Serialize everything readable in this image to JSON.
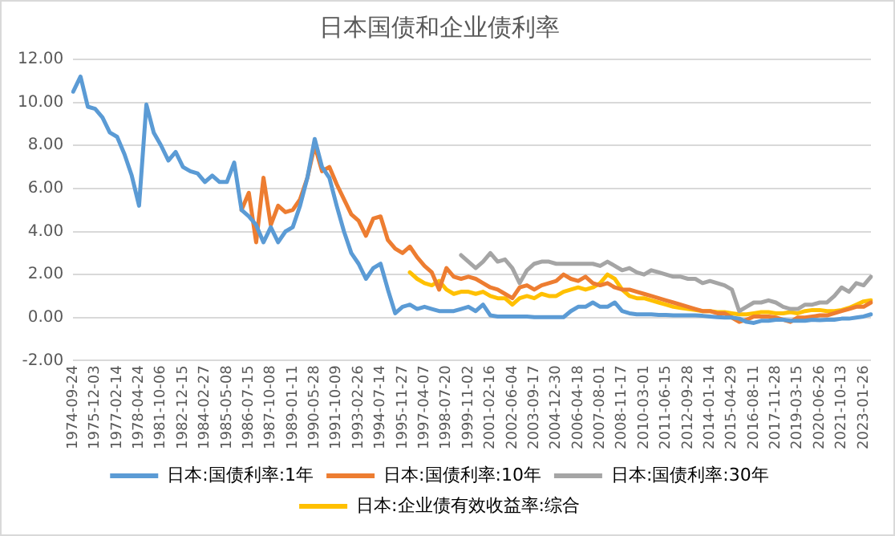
{
  "chart_data": {
    "type": "line",
    "title": "日本国债和企业债利率",
    "categories": [
      "1974-09-24",
      null,
      null,
      "1975-12-03",
      null,
      null,
      "1977-02-14",
      null,
      null,
      "1978-04-24",
      null,
      null,
      "1981-10-06",
      null,
      null,
      "1982-12-15",
      null,
      null,
      "1984-02-27",
      null,
      null,
      "1985-05-08",
      null,
      null,
      "1986-07-15",
      null,
      null,
      "1987-10-08",
      null,
      null,
      "1989-01-11",
      null,
      null,
      "1990-05-28",
      null,
      null,
      "1991-10-09",
      null,
      null,
      "1993-02-26",
      null,
      null,
      "1994-07-14",
      null,
      null,
      "1995-11-27",
      null,
      null,
      "1997-04-07",
      null,
      null,
      "1998-07-20",
      null,
      null,
      "1999-11-02",
      null,
      null,
      "2001-02-16",
      null,
      null,
      "2002-06-04",
      null,
      null,
      "2003-09-17",
      null,
      null,
      "2004-12-30",
      null,
      null,
      "2006-04-18",
      null,
      null,
      "2007-08-01",
      null,
      null,
      "2008-11-17",
      null,
      null,
      "2010-03-01",
      null,
      null,
      "2011-06-15",
      null,
      null,
      "2012-09-28",
      null,
      null,
      "2014-01-14",
      null,
      null,
      "2015-04-29",
      null,
      null,
      "2016-08-11",
      null,
      null,
      "2017-11-28",
      null,
      null,
      "2019-03-15",
      null,
      null,
      "2020-06-26",
      null,
      null,
      "2021-10-13",
      null,
      null,
      "2023-01-26",
      null
    ],
    "series": [
      {
        "name": "日本:国债利率:1年",
        "color": "#5b9bd5",
        "values": [
          10.5,
          11.2,
          9.8,
          9.7,
          9.3,
          8.6,
          8.4,
          7.6,
          6.6,
          5.2,
          9.9,
          8.6,
          8.0,
          7.3,
          7.7,
          7.0,
          6.8,
          6.7,
          6.3,
          6.6,
          6.3,
          6.3,
          7.2,
          5.0,
          4.7,
          4.3,
          3.5,
          4.2,
          3.5,
          4.0,
          4.2,
          5.2,
          6.5,
          8.3,
          7.0,
          6.5,
          5.2,
          4.0,
          3.0,
          2.5,
          1.8,
          2.3,
          2.5,
          1.3,
          0.2,
          0.5,
          0.6,
          0.4,
          0.5,
          0.4,
          0.3,
          0.3,
          0.3,
          0.4,
          0.5,
          0.3,
          0.6,
          0.1,
          0.05,
          0.05,
          0.05,
          0.05,
          0.05,
          0.02,
          0.02,
          0.02,
          0.02,
          0.02,
          0.3,
          0.5,
          0.5,
          0.7,
          0.5,
          0.5,
          0.7,
          0.3,
          0.2,
          0.15,
          0.15,
          0.15,
          0.12,
          0.12,
          0.1,
          0.1,
          0.1,
          0.1,
          0.08,
          0.05,
          0.02,
          0.0,
          0.0,
          -0.05,
          -0.2,
          -0.25,
          -0.15,
          -0.15,
          -0.1,
          -0.1,
          -0.15,
          -0.15,
          -0.15,
          -0.1,
          -0.12,
          -0.1,
          -0.1,
          -0.05,
          -0.05,
          0.0,
          0.05,
          0.15
        ]
      },
      {
        "name": "日本:国债利率:10年",
        "color": "#ed7d31",
        "values": [
          null,
          null,
          null,
          null,
          null,
          null,
          null,
          null,
          null,
          null,
          null,
          null,
          null,
          null,
          null,
          null,
          null,
          null,
          null,
          null,
          null,
          null,
          null,
          5.0,
          5.8,
          3.5,
          6.5,
          4.3,
          5.2,
          4.9,
          5.0,
          5.5,
          6.5,
          8.0,
          6.8,
          7.0,
          6.2,
          5.5,
          4.8,
          4.5,
          3.8,
          4.6,
          4.7,
          3.6,
          3.2,
          3.0,
          3.3,
          2.8,
          2.4,
          2.1,
          1.3,
          2.3,
          1.9,
          1.8,
          1.9,
          1.8,
          1.6,
          1.4,
          1.3,
          1.1,
          0.9,
          1.4,
          1.5,
          1.3,
          1.5,
          1.6,
          1.7,
          2.0,
          1.8,
          1.7,
          1.9,
          1.6,
          1.5,
          1.6,
          1.4,
          1.3,
          1.3,
          1.2,
          1.1,
          1.0,
          0.9,
          0.8,
          0.7,
          0.6,
          0.5,
          0.4,
          0.3,
          0.3,
          0.2,
          0.2,
          0.0,
          -0.2,
          -0.1,
          0.05,
          0.05,
          0.05,
          0.0,
          -0.1,
          -0.2,
          0.0,
          0.0,
          0.05,
          0.1,
          0.1,
          0.2,
          0.3,
          0.4,
          0.5,
          0.5,
          0.7
        ]
      },
      {
        "name": "日本:国债利率:30年",
        "color": "#a5a5a5",
        "values": [
          null,
          null,
          null,
          null,
          null,
          null,
          null,
          null,
          null,
          null,
          null,
          null,
          null,
          null,
          null,
          null,
          null,
          null,
          null,
          null,
          null,
          null,
          null,
          null,
          null,
          null,
          null,
          null,
          null,
          null,
          null,
          null,
          null,
          null,
          null,
          null,
          null,
          null,
          null,
          null,
          null,
          null,
          null,
          null,
          null,
          null,
          null,
          null,
          null,
          null,
          null,
          null,
          null,
          2.9,
          2.6,
          2.3,
          2.6,
          3.0,
          2.6,
          2.7,
          2.3,
          1.6,
          2.2,
          2.5,
          2.6,
          2.6,
          2.5,
          2.5,
          2.5,
          2.5,
          2.5,
          2.5,
          2.4,
          2.6,
          2.4,
          2.2,
          2.3,
          2.1,
          2.0,
          2.2,
          2.1,
          2.0,
          1.9,
          1.9,
          1.8,
          1.8,
          1.6,
          1.7,
          1.6,
          1.5,
          1.3,
          0.3,
          0.5,
          0.7,
          0.7,
          0.8,
          0.7,
          0.5,
          0.4,
          0.4,
          0.6,
          0.6,
          0.7,
          0.7,
          1.0,
          1.4,
          1.2,
          1.6,
          1.5,
          1.9
        ]
      },
      {
        "name": "日本:企业债有效收益率:综合",
        "color": "#ffc000",
        "values": [
          null,
          null,
          null,
          null,
          null,
          null,
          null,
          null,
          null,
          null,
          null,
          null,
          null,
          null,
          null,
          null,
          null,
          null,
          null,
          null,
          null,
          null,
          null,
          null,
          null,
          null,
          null,
          null,
          null,
          null,
          null,
          null,
          null,
          null,
          null,
          null,
          null,
          null,
          null,
          null,
          null,
          null,
          null,
          null,
          null,
          null,
          2.1,
          1.8,
          1.6,
          1.5,
          1.7,
          1.3,
          1.1,
          1.2,
          1.2,
          1.1,
          1.2,
          1.0,
          0.9,
          0.9,
          0.6,
          0.9,
          1.0,
          0.9,
          1.1,
          1.0,
          1.0,
          1.2,
          1.3,
          1.4,
          1.3,
          1.4,
          1.6,
          2.0,
          1.8,
          1.3,
          1.0,
          0.9,
          0.9,
          0.8,
          0.7,
          0.6,
          0.5,
          0.45,
          0.4,
          0.35,
          0.3,
          0.3,
          0.25,
          0.25,
          0.2,
          0.15,
          0.15,
          0.2,
          0.25,
          0.25,
          0.2,
          0.2,
          0.25,
          0.2,
          0.3,
          0.35,
          0.35,
          0.3,
          0.3,
          0.35,
          0.45,
          0.6,
          0.75,
          0.8
        ]
      }
    ],
    "ylim": [
      -2,
      12
    ],
    "yticks": [
      {
        "value": -2,
        "label": "-2.00"
      },
      {
        "value": 0,
        "label": "0.00"
      },
      {
        "value": 2,
        "label": "2.00"
      },
      {
        "value": 4,
        "label": "4.00"
      },
      {
        "value": 6,
        "label": "6.00"
      },
      {
        "value": 8,
        "label": "8.00"
      },
      {
        "value": 10,
        "label": "10.00"
      },
      {
        "value": 12,
        "label": "12.00"
      }
    ],
    "grid": "y",
    "legend": "bottom",
    "marker": "none",
    "line_style": "solid"
  }
}
